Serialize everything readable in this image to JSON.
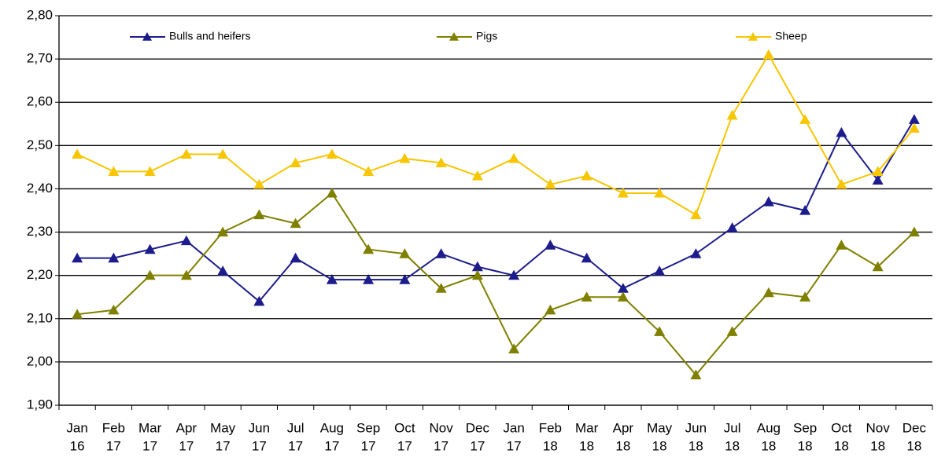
{
  "chart_data": {
    "type": "line",
    "categories": [
      [
        "Jan",
        "16"
      ],
      [
        "Feb",
        "17"
      ],
      [
        "Mar",
        "17"
      ],
      [
        "Apr",
        "17"
      ],
      [
        "May",
        "17"
      ],
      [
        "Jun",
        "17"
      ],
      [
        "Jul",
        "17"
      ],
      [
        "Aug",
        "17"
      ],
      [
        "Sep",
        "17"
      ],
      [
        "Oct",
        "17"
      ],
      [
        "Nov",
        "17"
      ],
      [
        "Dec",
        "17"
      ],
      [
        "Jan",
        "17"
      ],
      [
        "Feb",
        "18"
      ],
      [
        "Mar",
        "18"
      ],
      [
        "Apr",
        "18"
      ],
      [
        "May",
        "18"
      ],
      [
        "Jun",
        "18"
      ],
      [
        "Jul",
        "18"
      ],
      [
        "Aug",
        "18"
      ],
      [
        "Sep",
        "18"
      ],
      [
        "Oct",
        "18"
      ],
      [
        "Nov",
        "18"
      ],
      [
        "Dec",
        "18"
      ]
    ],
    "series": [
      {
        "name": "Bulls and heifers",
        "color": "#1c1c8c",
        "values": [
          2.24,
          2.24,
          2.26,
          2.28,
          2.21,
          2.14,
          2.24,
          2.19,
          2.19,
          2.19,
          2.25,
          2.22,
          2.2,
          2.27,
          2.24,
          2.17,
          2.21,
          2.25,
          2.31,
          2.37,
          2.35,
          2.53,
          2.42,
          2.56
        ]
      },
      {
        "name": "Pigs",
        "color": "#808000",
        "values": [
          2.11,
          2.12,
          2.2,
          2.2,
          2.3,
          2.34,
          2.32,
          2.39,
          2.26,
          2.25,
          2.17,
          2.2,
          2.03,
          2.12,
          2.15,
          2.15,
          2.07,
          1.97,
          2.07,
          2.16,
          2.15,
          2.27,
          2.22,
          2.3
        ]
      },
      {
        "name": "Sheep",
        "color": "#f7c600",
        "values": [
          2.48,
          2.44,
          2.44,
          2.48,
          2.48,
          2.41,
          2.46,
          2.48,
          2.44,
          2.47,
          2.46,
          2.43,
          2.47,
          2.41,
          2.43,
          2.39,
          2.39,
          2.34,
          2.57,
          2.71,
          2.56,
          2.41,
          2.44,
          2.54
        ]
      }
    ],
    "ylim": [
      1.9,
      2.8
    ],
    "yticks": [
      {
        "value": 1.9,
        "label": "1,90"
      },
      {
        "value": 2.0,
        "label": "2,00"
      },
      {
        "value": 2.1,
        "label": "2,10"
      },
      {
        "value": 2.2,
        "label": "2,20"
      },
      {
        "value": 2.3,
        "label": "2,30"
      },
      {
        "value": 2.4,
        "label": "2,40"
      },
      {
        "value": 2.5,
        "label": "2,50"
      },
      {
        "value": 2.6,
        "label": "2,60"
      },
      {
        "value": 2.7,
        "label": "2,70"
      },
      {
        "value": 2.8,
        "label": "2,80"
      }
    ],
    "grid": true,
    "legend": "top"
  }
}
